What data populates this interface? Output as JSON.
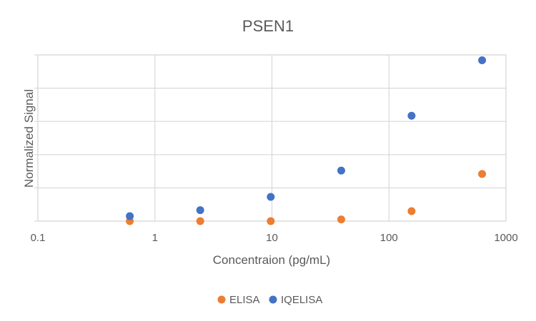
{
  "chart_data": {
    "type": "scatter",
    "title": "PSEN1",
    "xlabel": "Concentraion (pg/mL)",
    "ylabel": "Normalized Signal",
    "x_scale": "log",
    "xlim": [
      0.1,
      1000
    ],
    "ylim": [
      0,
      5
    ],
    "x_ticks": [
      "0.1",
      "1",
      "10",
      "100",
      "1000"
    ],
    "y_tick_labels_shown": false,
    "grid": true,
    "legend_position": "bottom",
    "series": [
      {
        "name": "ELISA",
        "color": "#ED7D31",
        "x": [
          0.61,
          2.44,
          9.77,
          39.1,
          156,
          625
        ],
        "y": [
          0.0,
          0.0,
          0.0,
          0.05,
          0.3,
          1.42
        ]
      },
      {
        "name": "IQELISA",
        "color": "#4472C4",
        "x": [
          0.61,
          2.44,
          9.77,
          39.1,
          156,
          625
        ],
        "y": [
          0.15,
          0.33,
          0.73,
          1.52,
          3.17,
          4.84
        ]
      }
    ]
  }
}
